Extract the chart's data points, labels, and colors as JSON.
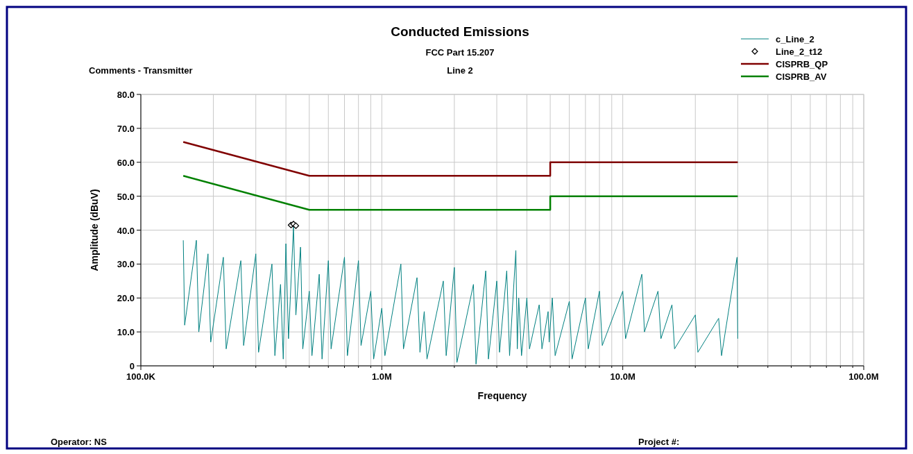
{
  "chart_data": {
    "type": "line",
    "title": "Conducted Emissions",
    "subtitle": "FCC Part 15.207",
    "xlabel": "Frequency",
    "ylabel": "Amplitude (dBuV)",
    "annotations": [
      "Comments - Transmitter",
      "Line 2",
      "Operator: NS",
      "Project #:"
    ],
    "log": "x",
    "grid": true,
    "legend": "top right",
    "xlim": [
      100000,
      100000000
    ],
    "ylim": [
      0,
      80
    ],
    "xticks": [
      {
        "value": 100000,
        "label": "100.0K"
      },
      {
        "value": 200000,
        "label": null
      },
      {
        "value": 300000,
        "label": null
      },
      {
        "value": 400000,
        "label": null
      },
      {
        "value": 500000,
        "label": null
      },
      {
        "value": 600000,
        "label": null
      },
      {
        "value": 700000,
        "label": null
      },
      {
        "value": 800000,
        "label": null
      },
      {
        "value": 900000,
        "label": null
      },
      {
        "value": 1000000,
        "label": "1.0M"
      },
      {
        "value": 2000000,
        "label": null
      },
      {
        "value": 3000000,
        "label": null
      },
      {
        "value": 4000000,
        "label": null
      },
      {
        "value": 5000000,
        "label": null
      },
      {
        "value": 6000000,
        "label": null
      },
      {
        "value": 7000000,
        "label": null
      },
      {
        "value": 8000000,
        "label": null
      },
      {
        "value": 9000000,
        "label": null
      },
      {
        "value": 10000000,
        "label": "10.0M"
      },
      {
        "value": 20000000,
        "label": null
      },
      {
        "value": 30000000,
        "label": null
      },
      {
        "value": 40000000,
        "label": null
      },
      {
        "value": 50000000,
        "label": null
      },
      {
        "value": 60000000,
        "label": null
      },
      {
        "value": 70000000,
        "label": null
      },
      {
        "value": 80000000,
        "label": null
      },
      {
        "value": 90000000,
        "label": null
      },
      {
        "value": 100000000,
        "label": "100.0M"
      }
    ],
    "yticks": [
      0,
      {
        "value": 10,
        "label": "10.0"
      },
      {
        "value": 20,
        "label": "20.0"
      },
      {
        "value": 30,
        "label": "30.0"
      },
      {
        "value": 40,
        "label": "40.0"
      },
      {
        "value": 50,
        "label": "50.0"
      },
      {
        "value": 60,
        "label": "60.0"
      },
      {
        "value": 70,
        "label": "70.0"
      },
      {
        "value": 80,
        "label": "80.0"
      }
    ],
    "series": [
      {
        "name": "c_Line_2",
        "color": "#008080",
        "x": [
          150000,
          152000,
          170000,
          174000,
          190000,
          195000,
          220000,
          226000,
          260000,
          267000,
          300000,
          308000,
          350000,
          360000,
          380000,
          390000,
          400000,
          410000,
          430000,
          440000,
          460000,
          470000,
          500000,
          513000,
          550000,
          565000,
          600000,
          616000,
          700000,
          720000,
          800000,
          820000,
          900000,
          925000,
          1000000,
          1030000,
          1200000,
          1230000,
          1400000,
          1440000,
          1500000,
          1540000,
          1800000,
          1850000,
          2000000,
          2050000,
          2400000,
          2460000,
          2700000,
          2770000,
          3000000,
          3080000,
          3300000,
          3390000,
          3600000,
          3650000,
          3700000,
          3800000,
          4000000,
          4100000,
          4500000,
          4620000,
          4900000,
          4950000,
          5100000,
          5240000,
          6000000,
          6160000,
          7000000,
          7190000,
          8000000,
          8220000,
          10000000,
          10270000,
          12000000,
          12300000,
          14000000,
          14400000,
          16000000,
          16400000,
          20000000,
          20500000,
          25000000,
          25700000,
          29800000,
          30000000
        ],
        "values": [
          37,
          12,
          37,
          10,
          33,
          7,
          32,
          5,
          31,
          6,
          33,
          4,
          30,
          3,
          24,
          2,
          36,
          8,
          41,
          15,
          35,
          5,
          22,
          3,
          27,
          2,
          31,
          5,
          32,
          3,
          31,
          6,
          22,
          2,
          17,
          3,
          30,
          5,
          26,
          4,
          16,
          2,
          25,
          3,
          29,
          1,
          24,
          0.5,
          28,
          2,
          25,
          4,
          28,
          3,
          34,
          5,
          20,
          3,
          20,
          5,
          18,
          5,
          16,
          7,
          20,
          3,
          19,
          2,
          20,
          5,
          22,
          6,
          22,
          8,
          27,
          10,
          22,
          8,
          18,
          5,
          15,
          4,
          14,
          3,
          32,
          8
        ]
      },
      {
        "name": "Line_2_t12",
        "type": "scatter",
        "marker": "diamond",
        "color": "#000000",
        "x": [
          420000,
          430000,
          440000
        ],
        "values": [
          41.5,
          41.8,
          41.3
        ]
      },
      {
        "name": "CISPRB_QP",
        "color": "#800000",
        "x": [
          150000,
          500000,
          5000000,
          5000000,
          30000000
        ],
        "values": [
          66,
          56,
          56,
          60,
          60
        ]
      },
      {
        "name": "CISPRB_AV",
        "color": "#008000",
        "x": [
          150000,
          500000,
          5000000,
          5000000,
          30000000
        ],
        "values": [
          56,
          46,
          46,
          50,
          50
        ]
      }
    ]
  }
}
